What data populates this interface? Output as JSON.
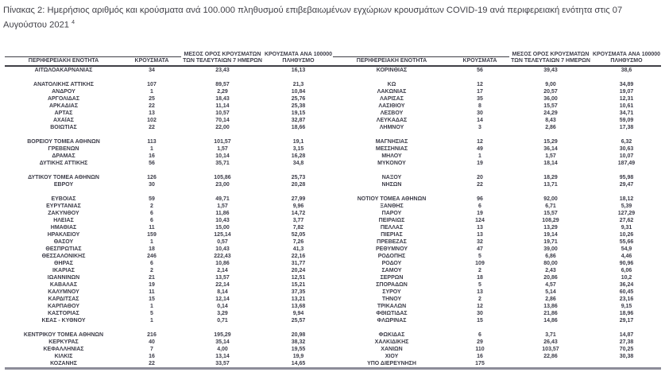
{
  "title": "Πίνακας 2: Ημερήσιος αριθμός και κρούσματα ανά 100.000 πληθυσμού επιβεβαιωμένων εγχώριων κρουσμάτων COVID-19 ανά περιφερειακή ενότητα στις 07 Αυγούστου 2021 ",
  "title_footnote_ref": "4",
  "colors": {
    "text": "#3d3d49",
    "rule": "#3f3f46",
    "bottom_rule": "#8d8d99"
  },
  "table": {
    "column_headers": [
      "ΠΕΡΙΦΕΡΕΙΑΚΗ ΕΝΟΤΗΤΑ",
      "ΚΡΟΥΣΜΑΤΑ",
      "ΜΕΣΟΣ ΟΡΟΣ ΚΡΟΥΣΜΑΤΩΝ\nΤΩΝ ΤΕΛΕΥΤΑΙΩΝ 7 ΗΜΕΡΩΝ",
      "ΚΡΟΥΣΜΑΤΑ ΑΝΑ 100000\nΠΛΗΘΥΣΜΟ"
    ],
    "rows": [
      [
        "ΑΙΤΩΛΟΑΚΑΡΝΑΝΙΑΣ",
        "34",
        "23,43",
        "16,13",
        "ΚΟΡΙΝΘΙΑΣ",
        "56",
        "39,43",
        "38,6"
      ],
      [],
      [
        "ΑΝΑΤΟΛΙΚΗΣ ΑΤΤΙΚΗΣ",
        "107",
        "89,57",
        "21,3",
        "ΚΩ",
        "12",
        "9,00",
        "34,89"
      ],
      [
        "ΑΝΔΡΟΥ",
        "1",
        "2,29",
        "10,84",
        "ΛΑΚΩΝΙΑΣ",
        "17",
        "20,57",
        "19,07"
      ],
      [
        "ΑΡΓΟΛΙΔΑΣ",
        "25",
        "18,43",
        "25,76",
        "ΛΑΡΙΣΑΣ",
        "35",
        "36,00",
        "12,31"
      ],
      [
        "ΑΡΚΑΔΙΑΣ",
        "22",
        "11,14",
        "25,38",
        "ΛΑΣΙΘΙΟΥ",
        "8",
        "15,57",
        "10,61"
      ],
      [
        "ΑΡΤΑΣ",
        "13",
        "10,57",
        "19,15",
        "ΛΕΣΒΟΥ",
        "30",
        "24,29",
        "34,71"
      ],
      [
        "ΑΧΑΪΑΣ",
        "102",
        "70,14",
        "32,87",
        "ΛΕΥΚΑΔΑΣ",
        "14",
        "8,43",
        "59,09"
      ],
      [
        "ΒΟΙΩΤΙΑΣ",
        "22",
        "22,00",
        "18,66",
        "ΛΗΜΝΟΥ",
        "3",
        "2,86",
        "17,38"
      ],
      [],
      [
        "ΒΟΡΕΙΟΥ ΤΟΜΕΑ ΑΘΗΝΩΝ",
        "113",
        "101,57",
        "19,1",
        "ΜΑΓΝΗΣΙΑΣ",
        "12",
        "15,29",
        "6,32"
      ],
      [
        "ΓΡΕΒΕΝΩΝ",
        "1",
        "1,57",
        "3,15",
        "ΜΕΣΣΗΝΙΑΣ",
        "49",
        "36,14",
        "30,63"
      ],
      [
        "ΔΡΑΜΑΣ",
        "16",
        "10,14",
        "16,28",
        "ΜΗΛΟΥ",
        "1",
        "1,57",
        "10,07"
      ],
      [
        "ΔΥΤΙΚΗΣ ΑΤΤΙΚΗΣ",
        "56",
        "35,71",
        "34,8",
        "ΜΥΚΟΝΟΥ",
        "19",
        "18,14",
        "187,49"
      ],
      [],
      [
        "ΔΥΤΙΚΟΥ ΤΟΜΕΑ ΑΘΗΝΩΝ",
        "126",
        "105,86",
        "25,73",
        "ΝΑΞΟΥ",
        "20",
        "18,29",
        "95,98"
      ],
      [
        "ΕΒΡΟΥ",
        "30",
        "23,00",
        "20,28",
        "ΝΗΣΩΝ",
        "22",
        "13,71",
        "29,47"
      ],
      [],
      [
        "ΕΥΒΟΙΑΣ",
        "59",
        "49,71",
        "27,99",
        "ΝΟΤΙΟΥ ΤΟΜΕΑ ΑΘΗΝΩΝ",
        "96",
        "92,00",
        "18,12"
      ],
      [
        "ΕΥΡΥΤΑΝΙΑΣ",
        "2",
        "1,57",
        "9,96",
        "ΞΑΝΘΗΣ",
        "6",
        "6,71",
        "5,39"
      ],
      [
        "ΖΑΚΥΝΘΟΥ",
        "6",
        "11,86",
        "14,72",
        "ΠΑΡΟΥ",
        "19",
        "15,57",
        "127,29"
      ],
      [
        "ΗΛΕΙΑΣ",
        "6",
        "10,43",
        "3,77",
        "ΠΕΙΡΑΙΩΣ",
        "124",
        "108,29",
        "27,62"
      ],
      [
        "ΗΜΑΘΙΑΣ",
        "11",
        "15,00",
        "7,82",
        "ΠΕΛΛΑΣ",
        "13",
        "13,29",
        "9,31"
      ],
      [
        "ΗΡΑΚΛΕΙΟΥ",
        "159",
        "125,14",
        "52,05",
        "ΠΙΕΡΙΑΣ",
        "13",
        "19,14",
        "10,26"
      ],
      [
        "ΘΑΣΟΥ",
        "1",
        "0,57",
        "7,26",
        "ΠΡΕΒΕΖΑΣ",
        "32",
        "19,71",
        "55,66"
      ],
      [
        "ΘΕΣΠΡΩΤΙΑΣ",
        "18",
        "10,43",
        "41,3",
        "ΡΕΘΥΜΝΟΥ",
        "47",
        "39,00",
        "54,9"
      ],
      [
        "ΘΕΣΣΑΛΟΝΙΚΗΣ",
        "246",
        "222,43",
        "22,16",
        "ΡΟΔΟΠΗΣ",
        "5",
        "6,86",
        "4,46"
      ],
      [
        "ΘΗΡΑΣ",
        "6",
        "10,86",
        "31,77",
        "ΡΟΔΟΥ",
        "109",
        "80,00",
        "90,96"
      ],
      [
        "ΙΚΑΡΙΑΣ",
        "2",
        "2,14",
        "20,24",
        "ΣΑΜΟΥ",
        "2",
        "2,43",
        "6,06"
      ],
      [
        "ΙΩΑΝΝΙΝΩΝ",
        "21",
        "13,57",
        "12,51",
        "ΣΕΡΡΩΝ",
        "18",
        "20,86",
        "10,2"
      ],
      [
        "ΚΑΒΑΛΑΣ",
        "19",
        "22,14",
        "15,21",
        "ΣΠΟΡΑΔΩΝ",
        "5",
        "4,57",
        "36,24"
      ],
      [
        "ΚΑΛΥΜΝΟΥ",
        "11",
        "8,14",
        "37,35",
        "ΣΥΡΟΥ",
        "13",
        "5,14",
        "60,45"
      ],
      [
        "ΚΑΡΔΙΤΣΑΣ",
        "15",
        "12,14",
        "13,21",
        "ΤΗΝΟΥ",
        "2",
        "2,86",
        "23,16"
      ],
      [
        "ΚΑΡΠΑΘΟΥ",
        "1",
        "0,14",
        "13,68",
        "ΤΡΙΚΑΛΩΝ",
        "12",
        "13,86",
        "9,15"
      ],
      [
        "ΚΑΣΤΟΡΙΑΣ",
        "5",
        "3,29",
        "9,94",
        "ΦΘΙΩΤΙΔΑΣ",
        "30",
        "21,86",
        "18,96"
      ],
      [
        "ΚΕΑΣ - ΚΥΘΝΟΥ",
        "1",
        "0,71",
        "25,57",
        "ΦΛΩΡΙΝΑΣ",
        "15",
        "14,86",
        "29,17"
      ],
      [],
      [
        "ΚΕΝΤΡΙΚΟΥ ΤΟΜΕΑ ΑΘΗΝΩΝ",
        "216",
        "195,29",
        "20,98",
        "ΦΩΚΙΔΑΣ",
        "6",
        "3,71",
        "14,87"
      ],
      [
        "ΚΕΡΚΥΡΑΣ",
        "40",
        "35,14",
        "38,32",
        "ΧΑΛΚΙΔΙΚΗΣ",
        "29",
        "26,43",
        "27,38"
      ],
      [
        "ΚΕΦΑΛΛΗΝΙΑΣ",
        "7",
        "4,00",
        "19,55",
        "ΧΑΝΙΩΝ",
        "110",
        "103,57",
        "70,25"
      ],
      [
        "ΚΙΛΚΙΣ",
        "16",
        "13,14",
        "19,9",
        "ΧΙΟΥ",
        "16",
        "22,86",
        "30,38"
      ],
      [
        "ΚΟΖΑΝΗΣ",
        "22",
        "33,57",
        "14,65",
        "ΥΠΟ ΔΙΕΡΕΥΝΗΣΗ",
        "175",
        "",
        ""
      ]
    ]
  }
}
